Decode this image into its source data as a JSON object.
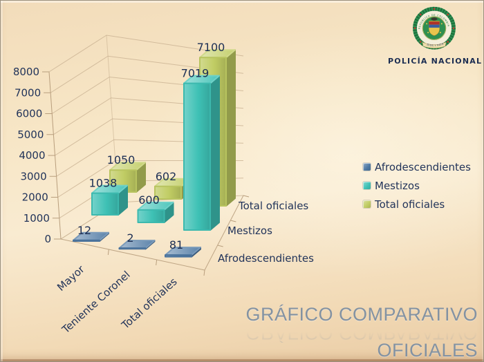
{
  "logo": {
    "icon": "policia-nacional-emblem",
    "caption": "POLICÍA NACIONAL",
    "ring_text_top": "REPUBLICA DE COLOMBIA",
    "ring_text_bottom": "POLICIA · NACIONAL",
    "ribbon_text": "DIOS Y PATRIA"
  },
  "title": {
    "line1": "GRÁFICO COMPARATIVO",
    "line2": "OFICIALES"
  },
  "chart_data": {
    "type": "bar",
    "projection": "3d",
    "title": "",
    "categories": [
      "Mayor",
      "Teniente Coronel",
      "Total oficiales"
    ],
    "series": [
      {
        "name": "Afrodescendientes",
        "color": "#4e78a3",
        "values": [
          12,
          2,
          81
        ]
      },
      {
        "name": "Mestizos",
        "color": "#3ec1b5",
        "values": [
          1038,
          600,
          7019
        ]
      },
      {
        "name": "Total oficiales",
        "color": "#c0cc63",
        "values": [
          1050,
          602,
          7100
        ]
      }
    ],
    "value_axis": {
      "min": 0,
      "max": 8000,
      "step": 1000,
      "tick_labels": [
        "0",
        "1000",
        "2000",
        "3000",
        "4000",
        "5000",
        "6000",
        "7000",
        "8000"
      ]
    },
    "depth_labels": [
      "Afrodescendientes",
      "Mestizos",
      "Total oficiales"
    ],
    "legend": {
      "position": "right",
      "items": [
        "Afrodescendientes",
        "Mestizos",
        "Total oficiales"
      ]
    },
    "grid": true,
    "data_labels_shown": true,
    "text_color": "#22345a"
  }
}
